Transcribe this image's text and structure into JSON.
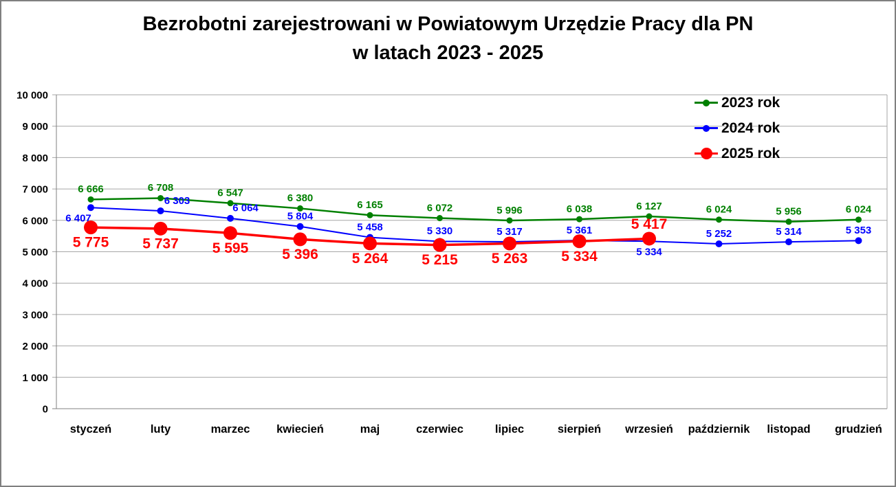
{
  "title": {
    "line1": "Bezrobotni zarejestrowani w Powiatowym Urzędzie Pracy dla PN",
    "line2": "w latach 2023 - 2025"
  },
  "colors": {
    "grid": "#a6a6a6",
    "axis": "#808080",
    "text": "#000000",
    "border": "#7f7f7f"
  },
  "chart_data": {
    "type": "line",
    "title": "Bezrobotni zarejestrowani w Powiatowym Urzędzie Pracy dla PN w latach 2023 - 2025",
    "xlabel": "",
    "ylabel": "",
    "ylim": [
      0,
      10000
    ],
    "y_tick_step": 1000,
    "y_ticks": [
      0,
      1000,
      2000,
      3000,
      4000,
      5000,
      6000,
      7000,
      8000,
      9000,
      10000
    ],
    "grid": true,
    "legend_position": "top-right",
    "number_format": "space-thousands",
    "categories": [
      "styczeń",
      "luty",
      "marzec",
      "kwiecień",
      "maj",
      "czerwiec",
      "lipiec",
      "sierpień",
      "wrzesień",
      "październik",
      "listopad",
      "grudzień"
    ],
    "series": [
      {
        "name": "2023 rok",
        "color": "#008000",
        "values": [
          6666,
          6708,
          6547,
          6380,
          6165,
          6072,
          5996,
          6038,
          6127,
          6024,
          5956,
          6024
        ],
        "line_width": 2.5,
        "marker_radius": 4.5,
        "label_font_size": 15,
        "label_side": [
          "above",
          "above",
          "above",
          "above",
          "above",
          "above",
          "above",
          "above",
          "above",
          "above",
          "above",
          "above"
        ],
        "label_dx": [
          0,
          0,
          0,
          0,
          0,
          0,
          0,
          0,
          0,
          0,
          0,
          0
        ]
      },
      {
        "name": "2024 rok",
        "color": "#0000ff",
        "values": [
          6407,
          6303,
          6064,
          5804,
          5458,
          5330,
          5317,
          5361,
          5334,
          5252,
          5314,
          5353
        ],
        "line_width": 2,
        "marker_radius": 5,
        "label_font_size": 15,
        "label_side": [
          "below",
          "above",
          "above",
          "above",
          "above",
          "above",
          "above",
          "above",
          "below",
          "above",
          "above",
          "above"
        ],
        "label_dx": [
          -18,
          24,
          22,
          0,
          0,
          0,
          0,
          0,
          0,
          0,
          0,
          0
        ]
      },
      {
        "name": "2025 rok",
        "color": "#ff0000",
        "values": [
          5775,
          5737,
          5595,
          5396,
          5264,
          5215,
          5263,
          5334,
          5417
        ],
        "line_width": 3.5,
        "marker_radius": 10,
        "label_font_size": 21,
        "label_side": [
          "below",
          "below",
          "below",
          "below",
          "below",
          "below",
          "below",
          "below",
          "above"
        ],
        "label_dx": [
          0,
          0,
          0,
          0,
          0,
          0,
          0,
          0,
          0
        ]
      }
    ]
  }
}
